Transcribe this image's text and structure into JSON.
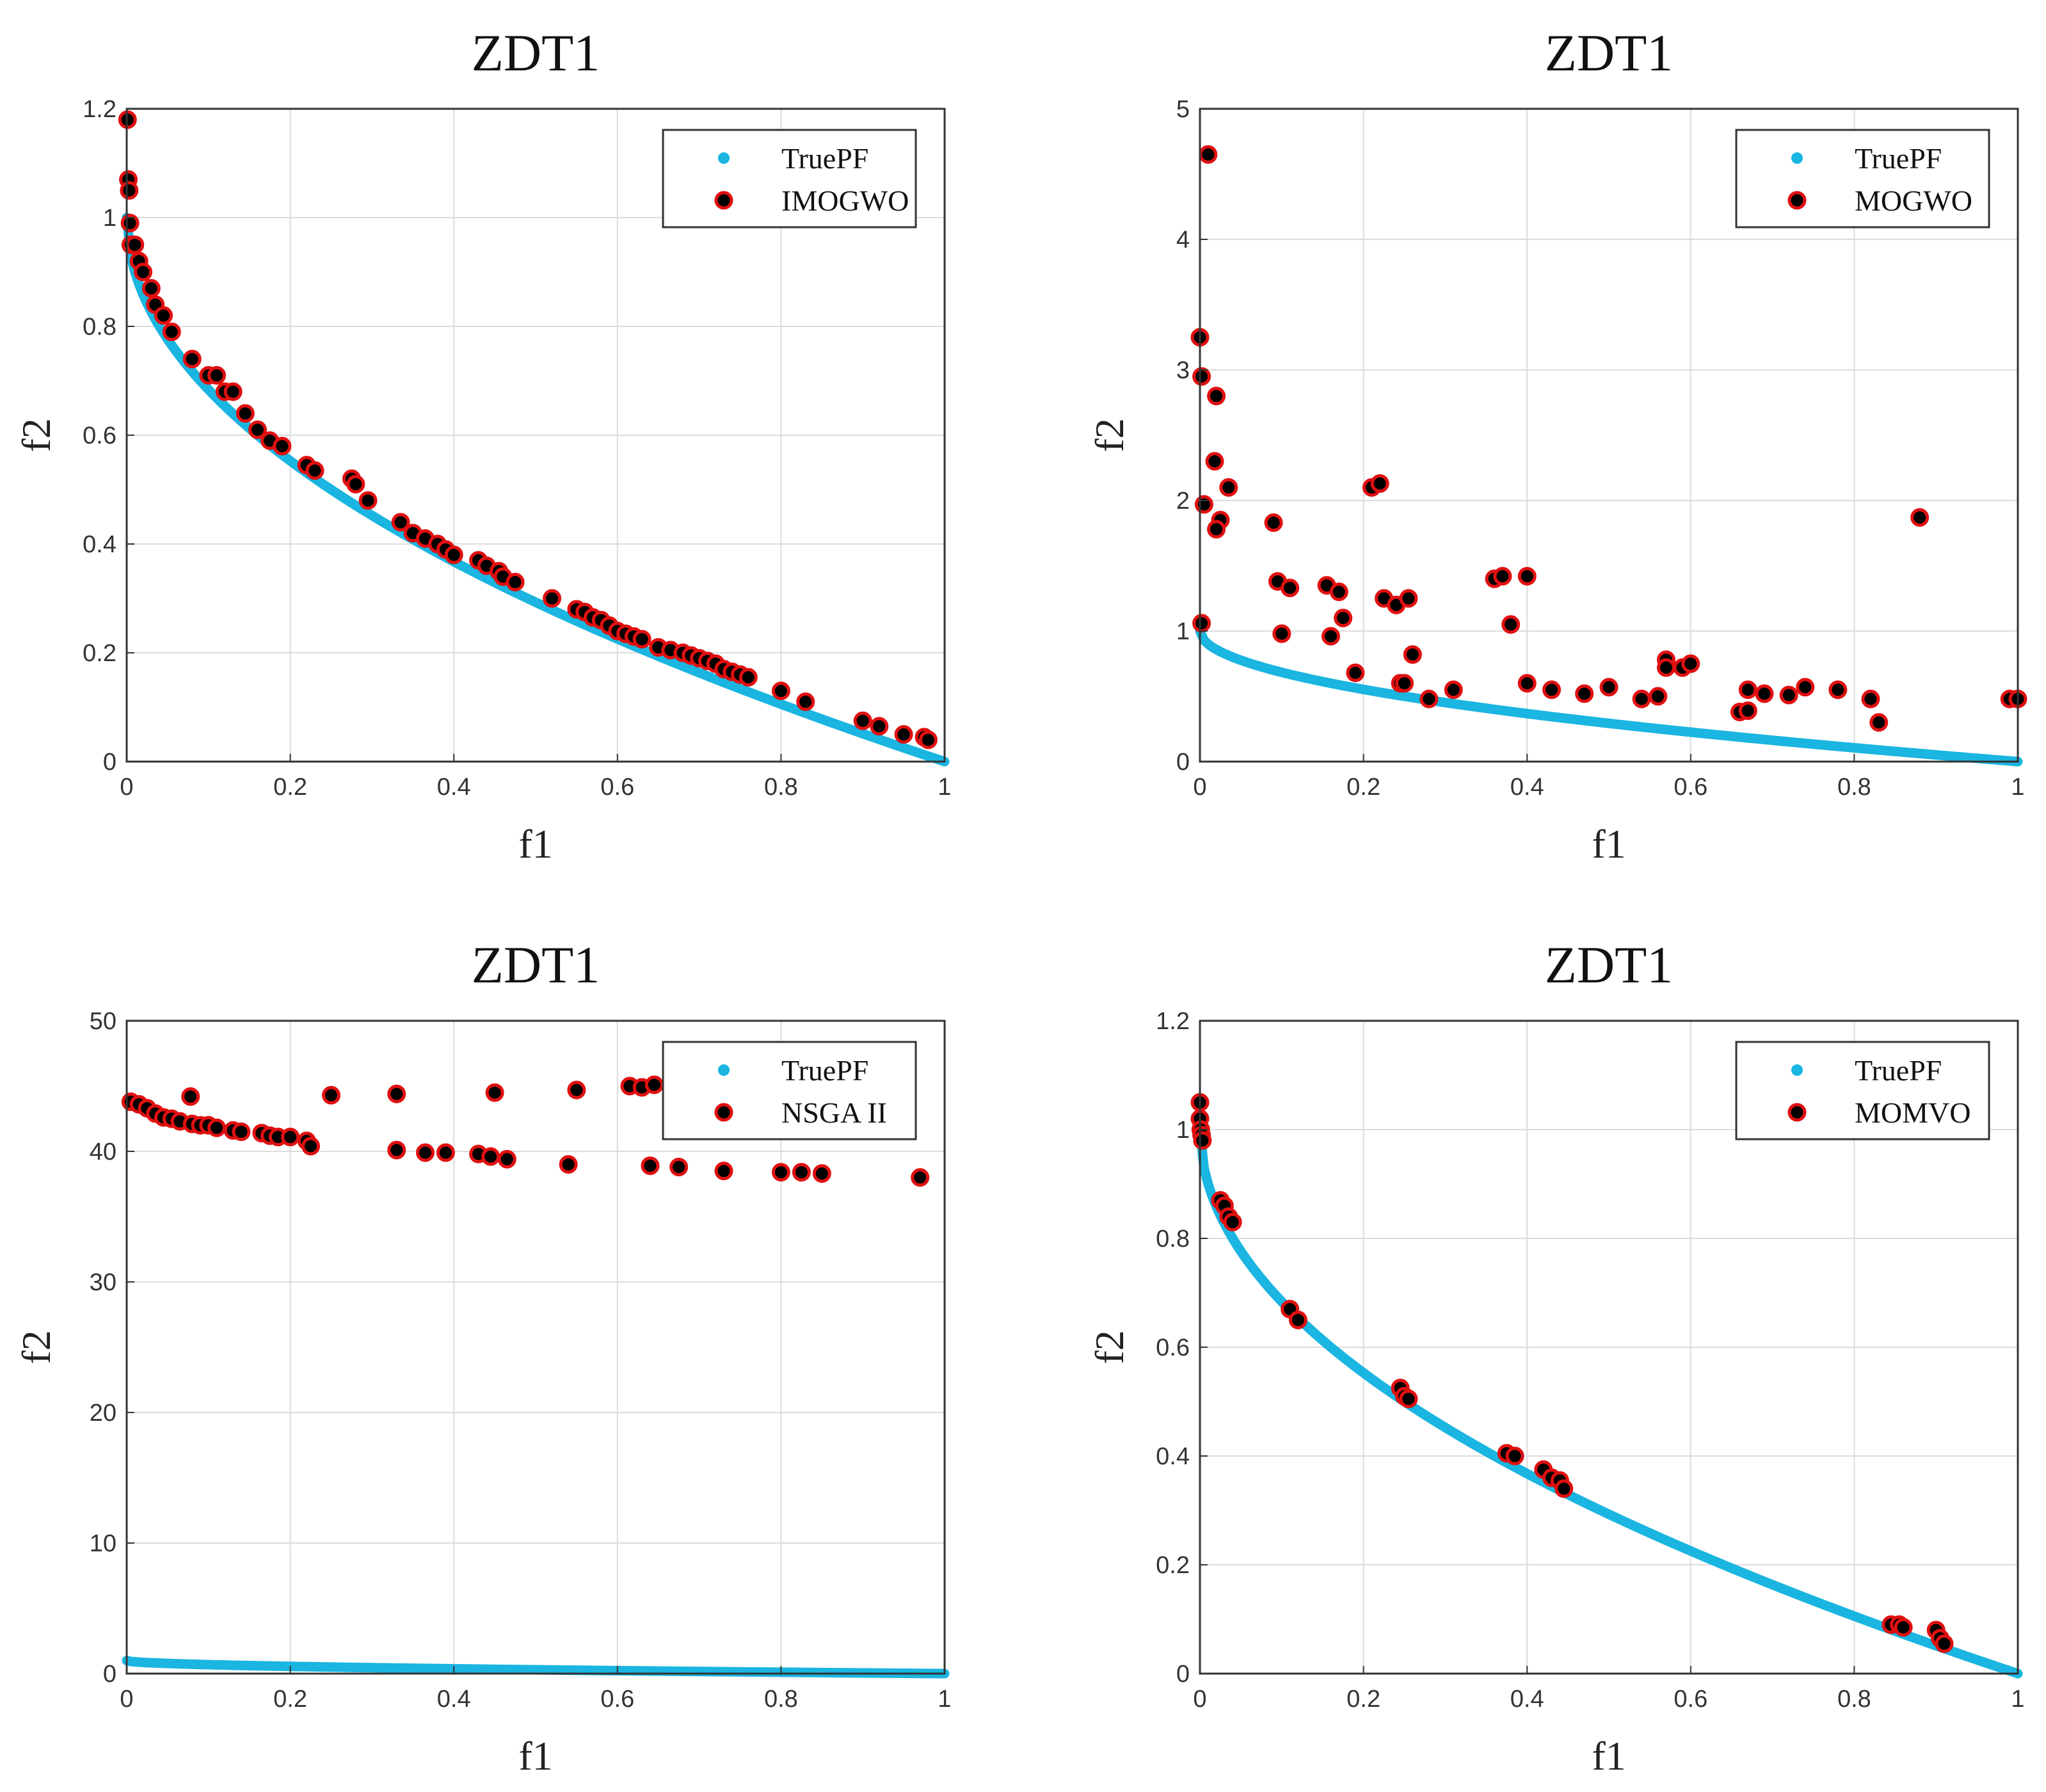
{
  "chart_data": [
    {
      "type": "scatter",
      "title": "ZDT1",
      "xlabel": "f1",
      "ylabel": "f2",
      "xlim": [
        0,
        1
      ],
      "ylim": [
        0,
        1.2
      ],
      "xticks": [
        "0",
        "0.2",
        "0.4",
        "0.6",
        "0.8",
        "1"
      ],
      "yticks": [
        "0",
        "0.2",
        "0.4",
        "0.6",
        "0.8",
        "1",
        "1.2"
      ],
      "grid": true,
      "legend_position": "top-right",
      "series": [
        {
          "name": "TruePF",
          "color": "#1ab5e0",
          "curve": "f2 = 1 - sqrt(f1)"
        },
        {
          "name": "IMOGWO",
          "color": "#e01010",
          "fill": "#000000",
          "x": [
            0.001,
            0.002,
            0.003,
            0.004,
            0.005,
            0.01,
            0.015,
            0.02,
            0.03,
            0.035,
            0.045,
            0.055,
            0.08,
            0.1,
            0.11,
            0.12,
            0.13,
            0.145,
            0.16,
            0.175,
            0.19,
            0.22,
            0.23,
            0.275,
            0.28,
            0.295,
            0.335,
            0.35,
            0.365,
            0.38,
            0.39,
            0.4,
            0.43,
            0.44,
            0.455,
            0.46,
            0.475,
            0.52,
            0.55,
            0.56,
            0.57,
            0.58,
            0.59,
            0.6,
            0.61,
            0.62,
            0.63,
            0.65,
            0.665,
            0.68,
            0.69,
            0.7,
            0.71,
            0.72,
            0.73,
            0.74,
            0.75,
            0.76,
            0.8,
            0.83,
            0.9,
            0.92,
            0.95,
            0.975,
            0.98
          ],
          "y": [
            1.18,
            1.07,
            1.05,
            0.99,
            0.95,
            0.95,
            0.92,
            0.9,
            0.87,
            0.84,
            0.82,
            0.79,
            0.74,
            0.71,
            0.71,
            0.68,
            0.68,
            0.64,
            0.61,
            0.59,
            0.58,
            0.545,
            0.535,
            0.52,
            0.51,
            0.48,
            0.44,
            0.42,
            0.41,
            0.4,
            0.39,
            0.38,
            0.37,
            0.36,
            0.35,
            0.34,
            0.33,
            0.3,
            0.28,
            0.275,
            0.265,
            0.26,
            0.25,
            0.24,
            0.235,
            0.23,
            0.225,
            0.21,
            0.205,
            0.2,
            0.195,
            0.19,
            0.185,
            0.18,
            0.17,
            0.165,
            0.16,
            0.155,
            0.13,
            0.11,
            0.075,
            0.065,
            0.05,
            0.045,
            0.04
          ]
        }
      ]
    },
    {
      "type": "scatter",
      "title": "ZDT1",
      "xlabel": "f1",
      "ylabel": "f2",
      "xlim": [
        0,
        1
      ],
      "ylim": [
        0,
        5
      ],
      "xticks": [
        "0",
        "0.2",
        "0.4",
        "0.6",
        "0.8",
        "1"
      ],
      "yticks": [
        "0",
        "1",
        "2",
        "3",
        "4",
        "5"
      ],
      "grid": true,
      "legend_position": "top-right",
      "series": [
        {
          "name": "TruePF",
          "color": "#1ab5e0",
          "curve": "f2 = 1 - sqrt(f1)"
        },
        {
          "name": "MOGWO",
          "color": "#e01010",
          "fill": "#000000",
          "x": [
            0.01,
            0.0,
            0.002,
            0.02,
            0.018,
            0.035,
            0.005,
            0.025,
            0.02,
            0.002,
            0.09,
            0.095,
            0.1,
            0.11,
            0.155,
            0.16,
            0.17,
            0.175,
            0.19,
            0.21,
            0.22,
            0.225,
            0.24,
            0.245,
            0.25,
            0.255,
            0.26,
            0.28,
            0.31,
            0.36,
            0.37,
            0.38,
            0.4,
            0.4,
            0.43,
            0.47,
            0.5,
            0.54,
            0.56,
            0.57,
            0.57,
            0.59,
            0.6,
            0.66,
            0.67,
            0.67,
            0.69,
            0.72,
            0.74,
            0.78,
            0.82,
            0.83,
            0.88,
            0.99,
            1.0
          ],
          "y": [
            4.65,
            3.25,
            2.95,
            2.8,
            2.3,
            2.1,
            1.97,
            1.85,
            1.78,
            1.06,
            1.83,
            1.38,
            0.98,
            1.33,
            1.35,
            0.96,
            1.3,
            1.1,
            0.68,
            2.1,
            2.13,
            1.25,
            1.2,
            0.6,
            0.6,
            1.25,
            0.82,
            0.48,
            0.55,
            1.4,
            1.42,
            1.05,
            1.42,
            0.6,
            0.55,
            0.52,
            0.57,
            0.48,
            0.5,
            0.78,
            0.72,
            0.72,
            0.75,
            0.38,
            0.39,
            0.55,
            0.52,
            0.51,
            0.57,
            0.55,
            0.48,
            0.3,
            1.87,
            0.48,
            0.48
          ]
        }
      ]
    },
    {
      "type": "scatter",
      "title": "ZDT1",
      "xlabel": "f1",
      "ylabel": "f2",
      "xlim": [
        0,
        1
      ],
      "ylim": [
        0,
        50
      ],
      "xticks": [
        "0",
        "0.2",
        "0.4",
        "0.6",
        "0.8",
        "1"
      ],
      "yticks": [
        "0",
        "10",
        "20",
        "30",
        "40",
        "50"
      ],
      "grid": true,
      "legend_position": "top-right",
      "series": [
        {
          "name": "TruePF",
          "color": "#1ab5e0",
          "curve": "f2 = 1 - sqrt(f1)"
        },
        {
          "name": "NSGA II",
          "color": "#e01010",
          "fill": "#000000",
          "x": [
            0.005,
            0.015,
            0.025,
            0.035,
            0.045,
            0.055,
            0.065,
            0.078,
            0.08,
            0.09,
            0.1,
            0.11,
            0.13,
            0.14,
            0.165,
            0.175,
            0.185,
            0.2,
            0.22,
            0.225,
            0.25,
            0.33,
            0.33,
            0.365,
            0.39,
            0.43,
            0.445,
            0.45,
            0.465,
            0.54,
            0.55,
            0.615,
            0.63,
            0.64,
            0.645,
            0.675,
            0.73,
            0.8,
            0.825,
            0.85,
            0.97
          ],
          "y": [
            43.8,
            43.6,
            43.3,
            42.9,
            42.6,
            42.5,
            42.3,
            44.2,
            42.1,
            42.0,
            42.0,
            41.8,
            41.6,
            41.5,
            41.4,
            41.2,
            41.1,
            41.1,
            40.8,
            40.4,
            44.3,
            44.4,
            40.1,
            39.9,
            39.9,
            39.8,
            39.6,
            44.5,
            39.4,
            39.0,
            44.7,
            45.0,
            44.9,
            38.9,
            45.1,
            38.8,
            38.5,
            38.4,
            38.4,
            38.3,
            38.0
          ]
        }
      ]
    },
    {
      "type": "scatter",
      "title": "ZDT1",
      "xlabel": "f1",
      "ylabel": "f2",
      "xlim": [
        0,
        1
      ],
      "ylim": [
        0,
        1.2
      ],
      "xticks": [
        "0",
        "0.2",
        "0.4",
        "0.6",
        "0.8",
        "1"
      ],
      "yticks": [
        "0",
        "0.2",
        "0.4",
        "0.6",
        "0.8",
        "1",
        "1.2"
      ],
      "grid": true,
      "legend_position": "top-right",
      "series": [
        {
          "name": "TruePF",
          "color": "#1ab5e0",
          "curve": "f2 = 1 - sqrt(f1)"
        },
        {
          "name": "MOMVO",
          "color": "#e01010",
          "fill": "#000000",
          "x": [
            0.0,
            0.0,
            0.001,
            0.002,
            0.003,
            0.025,
            0.03,
            0.035,
            0.04,
            0.11,
            0.12,
            0.245,
            0.25,
            0.255,
            0.375,
            0.385,
            0.42,
            0.43,
            0.44,
            0.445,
            0.845,
            0.855,
            0.86,
            0.9,
            0.905,
            0.91
          ],
          "y": [
            1.05,
            1.02,
            1.0,
            0.99,
            0.98,
            0.87,
            0.86,
            0.84,
            0.83,
            0.67,
            0.65,
            0.525,
            0.51,
            0.505,
            0.405,
            0.4,
            0.375,
            0.36,
            0.355,
            0.34,
            0.09,
            0.09,
            0.085,
            0.08,
            0.065,
            0.055
          ]
        }
      ]
    }
  ]
}
